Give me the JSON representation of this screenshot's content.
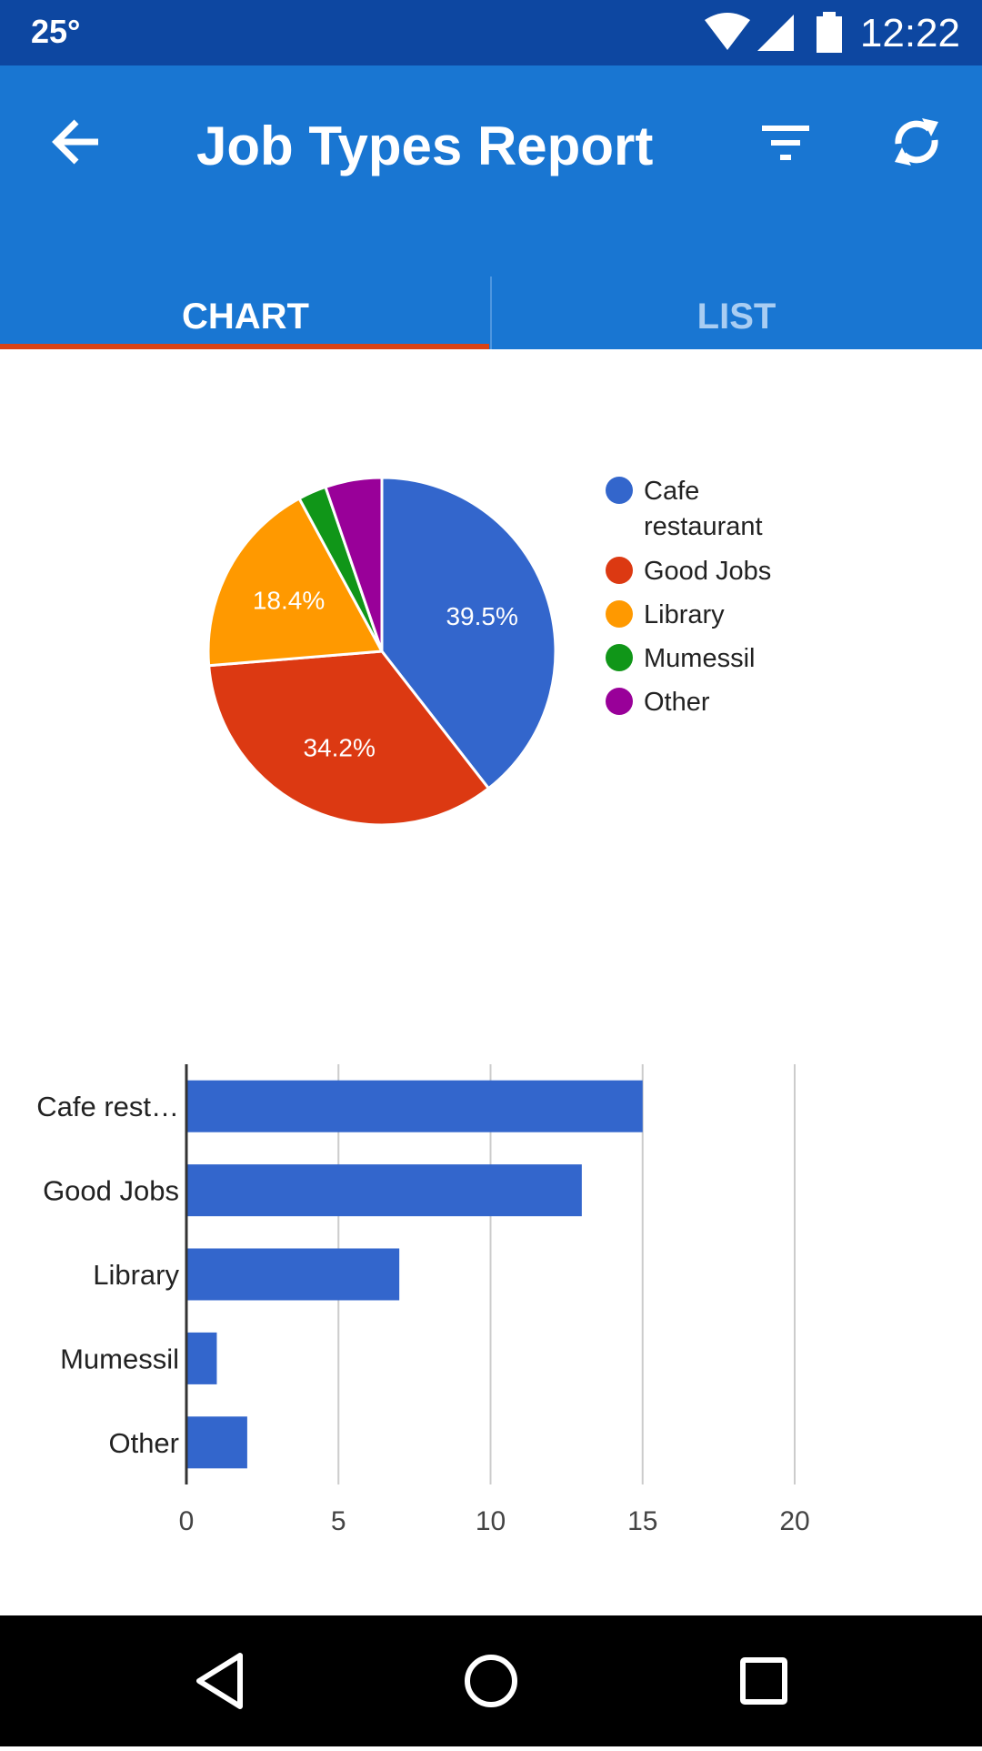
{
  "status_bar": {
    "temperature": "25°",
    "time": "12:22"
  },
  "app_bar": {
    "title": "Job Types Report",
    "icons": [
      "back-arrow-icon",
      "filter-icon",
      "refresh-icon"
    ]
  },
  "tabs": [
    {
      "label": "CHART",
      "selected": true
    },
    {
      "label": "LIST",
      "selected": false
    }
  ],
  "colors": {
    "status_bar": "#0d47a1",
    "app_bar": "#1976d2",
    "tab_indicator": "#d84315",
    "bar_fill": "#3366cc"
  },
  "chart_data": [
    {
      "type": "pie",
      "categories": [
        "Cafe restaurant",
        "Good Jobs",
        "Library",
        "Mumessil",
        "Other"
      ],
      "values": [
        15,
        13,
        7,
        1,
        2
      ],
      "slice_labels": [
        "39.5%",
        "34.2%",
        "18.4%",
        "",
        ""
      ],
      "colors": [
        "#3366cc",
        "#dc3912",
        "#ff9900",
        "#109618",
        "#990099"
      ],
      "legend_labels": [
        [
          "Cafe",
          "restaurant"
        ],
        [
          "Good Jobs"
        ],
        [
          "Library"
        ],
        [
          "Mumessil"
        ],
        [
          "Other"
        ]
      ],
      "legend": "right"
    },
    {
      "type": "bar",
      "orientation": "horizontal",
      "categories": [
        "Cafe rest…",
        "Good Jobs",
        "Library",
        "Mumessil",
        "Other"
      ],
      "values": [
        15,
        13,
        7,
        1,
        2
      ],
      "xlim": [
        0,
        20
      ],
      "x_ticks": [
        0,
        5,
        10,
        15,
        20
      ],
      "grid": true,
      "color": "#3366cc"
    }
  ],
  "nav_bar": {
    "icons": [
      "back-triangle-icon",
      "home-circle-icon",
      "recents-square-icon"
    ]
  }
}
